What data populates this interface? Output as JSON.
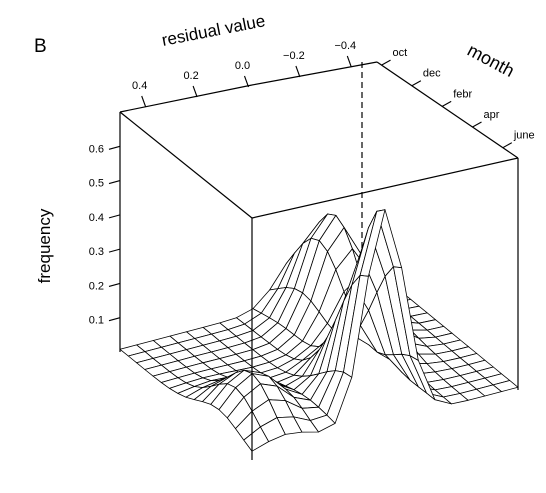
{
  "panel_label": "B",
  "chart_data": {
    "type": "surface",
    "title": "",
    "xlabel": "residual value",
    "ylabel": "month",
    "zlabel": "frequency",
    "x_ticks": [
      "0.4",
      "0.2",
      "0.0",
      "−0.2",
      "−0.4"
    ],
    "x_tick_values": [
      0.4,
      0.2,
      0.0,
      -0.2,
      -0.4
    ],
    "y_ticks": [
      "oct",
      "dec",
      "febr",
      "apr",
      "june"
    ],
    "z_ticks": [
      "0.1",
      "0.2",
      "0.3",
      "0.4",
      "0.5",
      "0.6"
    ],
    "z_tick_values": [
      0.1,
      0.2,
      0.3,
      0.4,
      0.5,
      0.6
    ],
    "xlim": [
      0.5,
      -0.5
    ],
    "zlim": [
      0,
      0.7
    ],
    "grid_resolution": 16,
    "peaks": [
      {
        "residual": 0.0,
        "month": "oct",
        "frequency": 0.62
      },
      {
        "residual": -0.18,
        "month": "apr",
        "frequency": 0.33
      },
      {
        "residual": 0.37,
        "month": "dec",
        "frequency": 0.14
      }
    ]
  }
}
